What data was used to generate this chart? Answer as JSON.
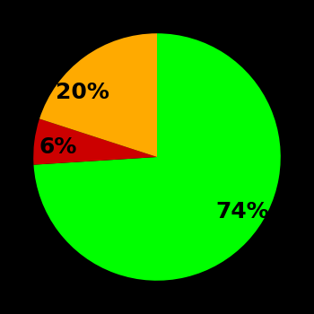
{
  "slices": [
    74,
    6,
    20
  ],
  "colors": [
    "#00ff00",
    "#cc0000",
    "#ffaa00"
  ],
  "labels": [
    "74%",
    "6%",
    "20%"
  ],
  "background_color": "#000000",
  "startangle": 90,
  "figsize": [
    3.5,
    3.5
  ],
  "dpi": 100,
  "labeldistance": 0.65,
  "fontsize": 18
}
